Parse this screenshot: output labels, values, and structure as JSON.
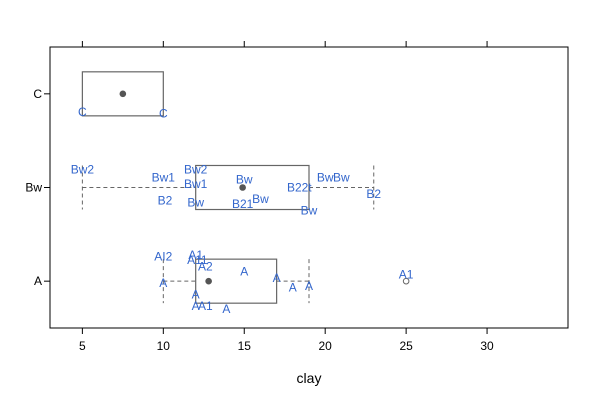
{
  "chart_data": {
    "type": "boxplot",
    "xlabel": "clay",
    "xlim": [
      3,
      35
    ],
    "x_ticks": [
      5,
      10,
      15,
      20,
      25,
      30
    ],
    "x_tick_labels": [
      "5",
      "10",
      "15",
      "20",
      "25",
      "30"
    ],
    "categories": [
      "A",
      "Bw",
      "C"
    ],
    "colors": {
      "box": "#666666",
      "whisker": "#666666",
      "median": "#555555",
      "label": "#3366cc",
      "frame": "#000000"
    },
    "boxes": [
      {
        "category": "A",
        "whisker_low": 10,
        "q1": 12,
        "median": 12.8,
        "q3": 17,
        "whisker_high": 19,
        "outliers": [
          25
        ]
      },
      {
        "category": "Bw",
        "whisker_low": 5,
        "q1": 12,
        "median": 14.9,
        "q3": 19,
        "whisker_high": 23,
        "outliers": []
      },
      {
        "category": "C",
        "whisker_low": 5,
        "q1": 5,
        "median": 7.5,
        "q3": 10,
        "whisker_high": 10,
        "outliers": []
      }
    ],
    "point_labels": [
      {
        "category": "A",
        "x": 10,
        "offset": 0.75,
        "text": "AI2"
      },
      {
        "category": "A",
        "x": 10,
        "offset": -0.05,
        "text": "A"
      },
      {
        "category": "A",
        "x": 12,
        "offset": 0.8,
        "text": "A1"
      },
      {
        "category": "A",
        "x": 12.1,
        "offset": 0.65,
        "text": "A11"
      },
      {
        "category": "A",
        "x": 12.6,
        "offset": 0.45,
        "text": "A2"
      },
      {
        "category": "A",
        "x": 12,
        "offset": -0.4,
        "text": "A"
      },
      {
        "category": "A",
        "x": 12,
        "offset": -0.75,
        "text": "A"
      },
      {
        "category": "A",
        "x": 12.6,
        "offset": -0.75,
        "text": "A1"
      },
      {
        "category": "A",
        "x": 13.9,
        "offset": -0.85,
        "text": "A"
      },
      {
        "category": "A",
        "x": 15,
        "offset": 0.3,
        "text": "A"
      },
      {
        "category": "A",
        "x": 17,
        "offset": 0.1,
        "text": "A"
      },
      {
        "category": "A",
        "x": 18,
        "offset": -0.2,
        "text": "A"
      },
      {
        "category": "A",
        "x": 19,
        "offset": -0.15,
        "text": "A"
      },
      {
        "category": "A",
        "x": 25,
        "offset": 0.2,
        "text": "A1"
      },
      {
        "category": "Bw",
        "x": 5,
        "offset": 0.55,
        "text": "Bw2"
      },
      {
        "category": "Bw",
        "x": 10,
        "offset": 0.3,
        "text": "Bw1"
      },
      {
        "category": "Bw",
        "x": 10.1,
        "offset": -0.4,
        "text": "B2"
      },
      {
        "category": "Bw",
        "x": 12,
        "offset": 0.55,
        "text": "Bw2"
      },
      {
        "category": "Bw",
        "x": 12,
        "offset": 0.1,
        "text": "Bw1"
      },
      {
        "category": "Bw",
        "x": 12,
        "offset": -0.45,
        "text": "Bw"
      },
      {
        "category": "Bw",
        "x": 15,
        "offset": 0.25,
        "text": "Bw"
      },
      {
        "category": "Bw",
        "x": 14.9,
        "offset": -0.5,
        "text": "B21"
      },
      {
        "category": "Bw",
        "x": 16,
        "offset": -0.35,
        "text": "Bw"
      },
      {
        "category": "Bw",
        "x": 18.4,
        "offset": 0.0,
        "text": "B22t"
      },
      {
        "category": "Bw",
        "x": 19,
        "offset": -0.7,
        "text": "Bw"
      },
      {
        "category": "Bw",
        "x": 20,
        "offset": 0.3,
        "text": "Bw"
      },
      {
        "category": "Bw",
        "x": 21,
        "offset": 0.3,
        "text": "Bw"
      },
      {
        "category": "Bw",
        "x": 23,
        "offset": -0.2,
        "text": "B2"
      },
      {
        "category": "C",
        "x": 5,
        "offset": -0.55,
        "text": "C"
      },
      {
        "category": "C",
        "x": 10,
        "offset": -0.6,
        "text": "C"
      }
    ],
    "grid": false,
    "legend": "none"
  }
}
